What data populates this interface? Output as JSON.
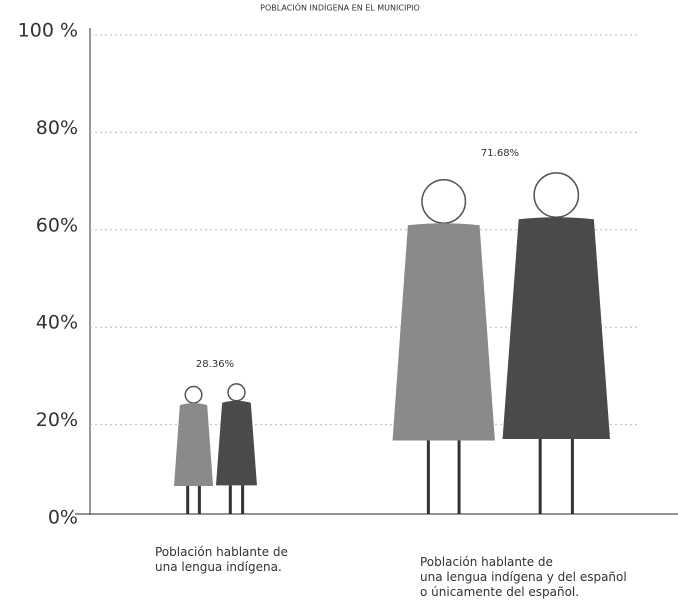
{
  "chart_data": {
    "type": "pictograph",
    "title": "POBLACIÓN INDÍGENA EN EL MUNICIPIO",
    "categories": [
      "Población hablante de\nuna lengua indígena.",
      "Población hablante de\nuna lengua indígena y del español\no únicamente del español."
    ],
    "values": [
      28.36,
      71.68
    ],
    "value_labels": [
      "28.36%",
      "71.68%"
    ],
    "ylim": [
      0,
      100
    ],
    "yticks": [
      {
        "value": 0,
        "label": "0%"
      },
      {
        "value": 20,
        "label": "20%"
      },
      {
        "value": 40,
        "label": "40%"
      },
      {
        "value": 60,
        "label": "60%"
      },
      {
        "value": 80,
        "label": "80%"
      },
      {
        "value": 100,
        "label": "100 %"
      }
    ],
    "grid": true,
    "colors": [
      "#8a8a8a",
      "#4a4a4a"
    ]
  }
}
